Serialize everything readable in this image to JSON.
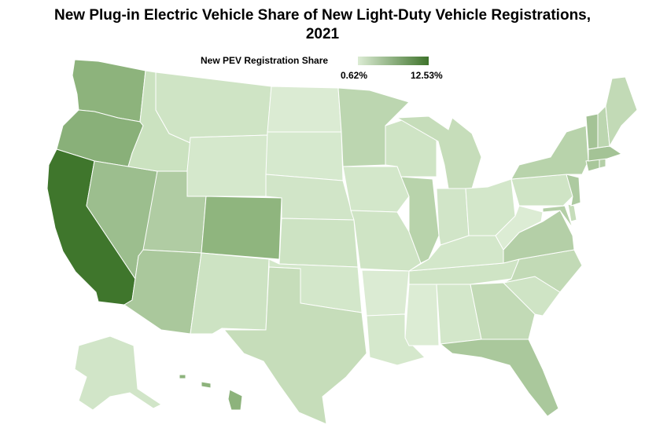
{
  "title_line1": "New Plug-in Electric Vehicle Share of New Light-Duty Vehicle Registrations,",
  "title_line2": "2021",
  "legend": {
    "label": "New PEV Registration Share",
    "min_label": "0.62%",
    "max_label": "12.53%",
    "min_value": 0.62,
    "max_value": 12.53,
    "min_color": "#dcecd4",
    "max_color": "#3e732b"
  },
  "colors": {
    "background": "#ffffff",
    "state_border": "#ffffff"
  }
}
